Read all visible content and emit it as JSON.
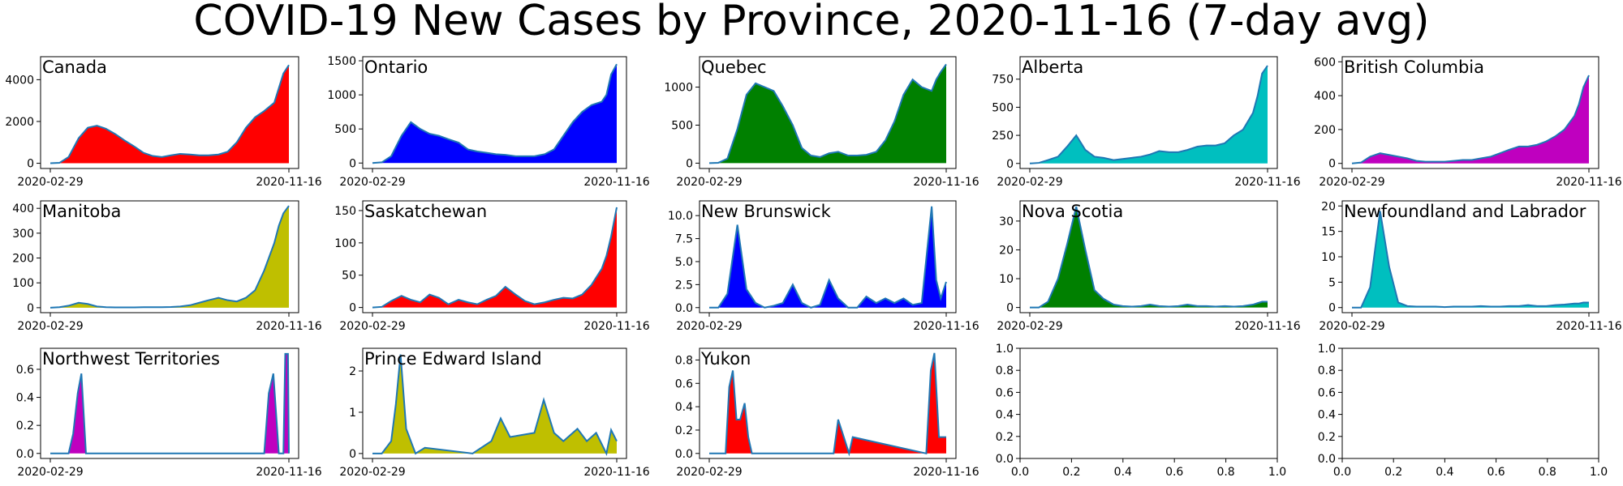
{
  "figure": {
    "title": "COVID-19 New Cases by Province, 2020-11-16 (7-day avg)"
  },
  "chart_data": [
    {
      "type": "area",
      "title": "Canada",
      "color": "#ff0000",
      "x": [
        "2020-02-29",
        "2020-03-10",
        "2020-03-20",
        "2020-03-31",
        "2020-04-10",
        "2020-04-20",
        "2020-04-30",
        "2020-05-10",
        "2020-05-20",
        "2020-05-31",
        "2020-06-10",
        "2020-06-20",
        "2020-06-30",
        "2020-07-10",
        "2020-07-20",
        "2020-07-31",
        "2020-08-10",
        "2020-08-20",
        "2020-08-31",
        "2020-09-10",
        "2020-09-20",
        "2020-09-30",
        "2020-10-10",
        "2020-10-20",
        "2020-10-31",
        "2020-11-05",
        "2020-11-10",
        "2020-11-16"
      ],
      "values": [
        0,
        20,
        300,
        1200,
        1700,
        1800,
        1650,
        1400,
        1100,
        800,
        500,
        350,
        300,
        380,
        450,
        420,
        380,
        380,
        420,
        550,
        1000,
        1700,
        2200,
        2500,
        2900,
        3600,
        4300,
        4700
      ],
      "yticks": [
        0,
        2000,
        4000
      ],
      "ylim": [
        -250,
        5100
      ],
      "xtick_labels": [
        "2020-02-29",
        "2020-11-16"
      ]
    },
    {
      "type": "area",
      "title": "Ontario",
      "color": "#0000ff",
      "x": [
        "2020-02-29",
        "2020-03-10",
        "2020-03-20",
        "2020-03-31",
        "2020-04-10",
        "2020-04-20",
        "2020-04-30",
        "2020-05-10",
        "2020-05-20",
        "2020-05-31",
        "2020-06-10",
        "2020-06-20",
        "2020-06-30",
        "2020-07-10",
        "2020-07-20",
        "2020-07-31",
        "2020-08-10",
        "2020-08-20",
        "2020-08-31",
        "2020-09-10",
        "2020-09-20",
        "2020-09-30",
        "2020-10-10",
        "2020-10-20",
        "2020-10-31",
        "2020-11-05",
        "2020-11-10",
        "2020-11-16"
      ],
      "values": [
        0,
        10,
        100,
        400,
        600,
        500,
        430,
        400,
        350,
        300,
        200,
        170,
        150,
        130,
        120,
        100,
        100,
        100,
        130,
        200,
        400,
        600,
        750,
        850,
        900,
        1000,
        1300,
        1450
      ],
      "yticks": [
        0,
        500,
        1000,
        1500
      ],
      "ylim": [
        -80,
        1560
      ],
      "xtick_labels": [
        "2020-02-29",
        "2020-11-16"
      ]
    },
    {
      "type": "area",
      "title": "Quebec",
      "color": "#008000",
      "x": [
        "2020-02-29",
        "2020-03-10",
        "2020-03-20",
        "2020-03-31",
        "2020-04-10",
        "2020-04-20",
        "2020-04-30",
        "2020-05-10",
        "2020-05-20",
        "2020-05-31",
        "2020-06-10",
        "2020-06-20",
        "2020-06-30",
        "2020-07-10",
        "2020-07-20",
        "2020-07-31",
        "2020-08-10",
        "2020-08-20",
        "2020-08-31",
        "2020-09-10",
        "2020-09-20",
        "2020-09-30",
        "2020-10-10",
        "2020-10-20",
        "2020-10-31",
        "2020-11-05",
        "2020-11-10",
        "2020-11-16"
      ],
      "values": [
        0,
        5,
        60,
        450,
        900,
        1050,
        1000,
        950,
        750,
        500,
        200,
        100,
        80,
        130,
        150,
        100,
        100,
        110,
        150,
        300,
        550,
        900,
        1100,
        1000,
        950,
        1100,
        1200,
        1300
      ],
      "yticks": [
        0,
        500,
        1000
      ],
      "ylim": [
        -70,
        1400
      ],
      "xtick_labels": [
        "2020-02-29",
        "2020-11-16"
      ]
    },
    {
      "type": "area",
      "title": "Alberta",
      "color": "#00bfbf",
      "x": [
        "2020-02-29",
        "2020-03-10",
        "2020-03-20",
        "2020-03-31",
        "2020-04-10",
        "2020-04-20",
        "2020-04-30",
        "2020-05-10",
        "2020-05-20",
        "2020-05-31",
        "2020-06-10",
        "2020-06-20",
        "2020-06-30",
        "2020-07-10",
        "2020-07-20",
        "2020-07-31",
        "2020-08-10",
        "2020-08-20",
        "2020-08-31",
        "2020-09-10",
        "2020-09-20",
        "2020-09-30",
        "2020-10-10",
        "2020-10-20",
        "2020-10-31",
        "2020-11-05",
        "2020-11-10",
        "2020-11-16"
      ],
      "values": [
        0,
        5,
        30,
        60,
        150,
        250,
        120,
        60,
        50,
        30,
        40,
        50,
        60,
        80,
        110,
        100,
        100,
        120,
        150,
        160,
        160,
        180,
        250,
        300,
        450,
        600,
        800,
        870
      ],
      "yticks": [
        0,
        250,
        500,
        750
      ],
      "ylim": [
        -45,
        950
      ],
      "xtick_labels": [
        "2020-02-29",
        "2020-11-16"
      ]
    },
    {
      "type": "area",
      "title": "British Columbia",
      "color": "#bf00bf",
      "x": [
        "2020-02-29",
        "2020-03-10",
        "2020-03-20",
        "2020-03-31",
        "2020-04-10",
        "2020-04-20",
        "2020-04-30",
        "2020-05-10",
        "2020-05-20",
        "2020-05-31",
        "2020-06-10",
        "2020-06-20",
        "2020-06-30",
        "2020-07-10",
        "2020-07-20",
        "2020-07-31",
        "2020-08-10",
        "2020-08-20",
        "2020-08-31",
        "2020-09-10",
        "2020-09-20",
        "2020-09-30",
        "2020-10-10",
        "2020-10-20",
        "2020-10-31",
        "2020-11-05",
        "2020-11-10",
        "2020-11-16"
      ],
      "values": [
        0,
        5,
        40,
        60,
        50,
        40,
        30,
        15,
        10,
        10,
        10,
        15,
        20,
        20,
        30,
        40,
        60,
        80,
        100,
        100,
        110,
        130,
        160,
        200,
        280,
        350,
        450,
        520
      ],
      "yticks": [
        0,
        200,
        400,
        600
      ],
      "ylim": [
        -30,
        630
      ],
      "xtick_labels": [
        "2020-02-29",
        "2020-11-16"
      ]
    },
    {
      "type": "area",
      "title": "Manitoba",
      "color": "#bfbf00",
      "x": [
        "2020-02-29",
        "2020-03-10",
        "2020-03-20",
        "2020-03-31",
        "2020-04-10",
        "2020-04-20",
        "2020-04-30",
        "2020-05-10",
        "2020-05-20",
        "2020-05-31",
        "2020-06-10",
        "2020-06-20",
        "2020-06-30",
        "2020-07-10",
        "2020-07-20",
        "2020-07-31",
        "2020-08-10",
        "2020-08-20",
        "2020-08-31",
        "2020-09-10",
        "2020-09-20",
        "2020-09-30",
        "2020-10-10",
        "2020-10-20",
        "2020-10-31",
        "2020-11-05",
        "2020-11-10",
        "2020-11-16"
      ],
      "values": [
        0,
        2,
        8,
        20,
        15,
        5,
        2,
        1,
        1,
        1,
        2,
        2,
        2,
        3,
        5,
        10,
        20,
        30,
        40,
        30,
        25,
        40,
        70,
        150,
        260,
        330,
        380,
        410
      ],
      "yticks": [
        0,
        100,
        200,
        300,
        400
      ],
      "ylim": [
        -20,
        430
      ],
      "xtick_labels": [
        "2020-02-29",
        "2020-11-16"
      ]
    },
    {
      "type": "area",
      "title": "Saskatchewan",
      "color": "#ff0000",
      "x": [
        "2020-02-29",
        "2020-03-10",
        "2020-03-20",
        "2020-03-31",
        "2020-04-10",
        "2020-04-20",
        "2020-04-30",
        "2020-05-10",
        "2020-05-20",
        "2020-05-31",
        "2020-06-10",
        "2020-06-20",
        "2020-06-30",
        "2020-07-10",
        "2020-07-20",
        "2020-07-31",
        "2020-08-10",
        "2020-08-20",
        "2020-08-31",
        "2020-09-10",
        "2020-09-20",
        "2020-09-30",
        "2020-10-10",
        "2020-10-20",
        "2020-10-31",
        "2020-11-05",
        "2020-11-10",
        "2020-11-16"
      ],
      "values": [
        0,
        1,
        10,
        18,
        12,
        8,
        20,
        15,
        5,
        12,
        8,
        5,
        12,
        18,
        32,
        20,
        10,
        5,
        8,
        12,
        15,
        14,
        20,
        35,
        60,
        80,
        110,
        155
      ],
      "yticks": [
        0,
        50,
        100,
        150
      ],
      "ylim": [
        -8,
        165
      ],
      "xtick_labels": [
        "2020-02-29",
        "2020-11-16"
      ]
    },
    {
      "type": "area",
      "title": "New Brunswick",
      "color": "#0000ff",
      "x": [
        "2020-02-29",
        "2020-03-10",
        "2020-03-20",
        "2020-03-31",
        "2020-04-10",
        "2020-04-20",
        "2020-04-30",
        "2020-05-10",
        "2020-05-20",
        "2020-05-31",
        "2020-06-10",
        "2020-06-20",
        "2020-06-30",
        "2020-07-10",
        "2020-07-20",
        "2020-07-31",
        "2020-08-10",
        "2020-08-20",
        "2020-08-31",
        "2020-09-10",
        "2020-09-20",
        "2020-09-30",
        "2020-10-10",
        "2020-10-20",
        "2020-10-31",
        "2020-11-05",
        "2020-11-10",
        "2020-11-16"
      ],
      "values": [
        0,
        0,
        1.5,
        9,
        2,
        0.5,
        0,
        0.2,
        0.5,
        2.5,
        0.5,
        0,
        0.3,
        3,
        1,
        0,
        0,
        1.2,
        0.5,
        1,
        0.5,
        1,
        0.3,
        0.5,
        11,
        3,
        1,
        2.8
      ],
      "yticks": [
        0,
        2.5,
        5,
        7.5,
        10
      ],
      "ylim": [
        -0.55,
        11.6
      ],
      "ytick_labels": [
        "0.0",
        "2.5",
        "5.0",
        "7.5",
        "10.0"
      ],
      "xtick_labels": [
        "2020-02-29",
        "2020-11-16"
      ]
    },
    {
      "type": "area",
      "title": "Nova Scotia",
      "color": "#008000",
      "x": [
        "2020-02-29",
        "2020-03-10",
        "2020-03-20",
        "2020-03-31",
        "2020-04-10",
        "2020-04-20",
        "2020-04-30",
        "2020-05-10",
        "2020-05-20",
        "2020-05-31",
        "2020-06-10",
        "2020-06-20",
        "2020-06-30",
        "2020-07-10",
        "2020-07-20",
        "2020-07-31",
        "2020-08-10",
        "2020-08-20",
        "2020-08-31",
        "2020-09-10",
        "2020-09-20",
        "2020-09-30",
        "2020-10-10",
        "2020-10-20",
        "2020-10-31",
        "2020-11-05",
        "2020-11-10",
        "2020-11-16"
      ],
      "values": [
        0,
        0,
        2,
        10,
        22,
        35,
        20,
        6,
        3,
        1,
        0.5,
        0.3,
        0.5,
        1,
        0.5,
        0.3,
        0.5,
        1,
        0.5,
        0.5,
        0.3,
        0.5,
        0.3,
        0.5,
        1,
        1.5,
        2,
        2
      ],
      "yticks": [
        0,
        10,
        20,
        30
      ],
      "ylim": [
        -1.8,
        37
      ],
      "xtick_labels": [
        "2020-02-29",
        "2020-11-16"
      ]
    },
    {
      "type": "area",
      "title": "Newfoundland and Labrador",
      "color": "#00bfbf",
      "x": [
        "2020-02-29",
        "2020-03-10",
        "2020-03-20",
        "2020-03-31",
        "2020-04-10",
        "2020-04-20",
        "2020-04-30",
        "2020-05-10",
        "2020-05-20",
        "2020-05-31",
        "2020-06-10",
        "2020-06-20",
        "2020-06-30",
        "2020-07-10",
        "2020-07-20",
        "2020-07-31",
        "2020-08-10",
        "2020-08-20",
        "2020-08-31",
        "2020-09-10",
        "2020-09-20",
        "2020-09-30",
        "2020-10-10",
        "2020-10-20",
        "2020-10-31",
        "2020-11-05",
        "2020-11-10",
        "2020-11-16"
      ],
      "values": [
        0,
        0,
        4,
        19,
        8,
        1,
        0.3,
        0.2,
        0.2,
        0.2,
        0.1,
        0.2,
        0.2,
        0.2,
        0.3,
        0.2,
        0.2,
        0.3,
        0.3,
        0.5,
        0.3,
        0.3,
        0.5,
        0.6,
        0.8,
        0.8,
        1,
        1
      ],
      "yticks": [
        0,
        5,
        10,
        15,
        20
      ],
      "ylim": [
        -1,
        21
      ],
      "xtick_labels": [
        "2020-02-29",
        "2020-11-16"
      ]
    },
    {
      "type": "area",
      "title": "Northwest Territories",
      "color": "#bf00bf",
      "x": [
        "2020-02-29",
        "2020-03-20",
        "2020-03-25",
        "2020-03-30",
        "2020-04-03",
        "2020-04-08",
        "2020-10-20",
        "2020-10-25",
        "2020-10-30",
        "2020-11-05",
        "2020-11-10",
        "2020-11-12",
        "2020-11-15",
        "2020-11-16"
      ],
      "values": [
        0,
        0,
        0.14,
        0.43,
        0.57,
        0,
        0,
        0.43,
        0.57,
        0,
        0,
        0.71,
        0.71,
        0
      ],
      "yticks": [
        0,
        0.2,
        0.4,
        0.6
      ],
      "ylim": [
        -0.036,
        0.75
      ],
      "ytick_labels": [
        "0.0",
        "0.2",
        "0.4",
        "0.6"
      ],
      "xtick_labels": [
        "2020-02-29",
        "2020-11-16"
      ]
    },
    {
      "type": "area",
      "title": "Prince Edward Island",
      "color": "#bfbf00",
      "x": [
        "2020-02-29",
        "2020-03-10",
        "2020-03-20",
        "2020-03-25",
        "2020-03-30",
        "2020-04-05",
        "2020-04-15",
        "2020-04-25",
        "2020-06-15",
        "2020-07-05",
        "2020-07-15",
        "2020-07-25",
        "2020-08-20",
        "2020-08-30",
        "2020-09-10",
        "2020-09-20",
        "2020-10-05",
        "2020-10-15",
        "2020-10-25",
        "2020-11-05",
        "2020-11-10",
        "2020-11-16"
      ],
      "values": [
        0,
        0,
        0.3,
        1.2,
        2.4,
        0.6,
        0,
        0.14,
        0,
        0.3,
        0.85,
        0.4,
        0.5,
        1.3,
        0.5,
        0.3,
        0.6,
        0.3,
        0.5,
        0,
        0.57,
        0.3
      ],
      "yticks": [
        0,
        1,
        2
      ],
      "ylim": [
        -0.12,
        2.55
      ],
      "xtick_labels": [
        "2020-02-29",
        "2020-11-16"
      ]
    },
    {
      "type": "area",
      "title": "Yukon",
      "color": "#ff0000",
      "x": [
        "2020-02-29",
        "2020-03-18",
        "2020-03-22",
        "2020-03-26",
        "2020-03-30",
        "2020-04-03",
        "2020-04-08",
        "2020-04-12",
        "2020-04-16",
        "2020-07-15",
        "2020-07-20",
        "2020-08-01",
        "2020-08-05",
        "2020-10-25",
        "2020-10-30",
        "2020-11-03",
        "2020-11-08",
        "2020-11-16"
      ],
      "values": [
        0,
        0,
        0.57,
        0.71,
        0.29,
        0.29,
        0.43,
        0.14,
        0,
        0,
        0.29,
        0,
        0.14,
        0,
        0.71,
        0.86,
        0.14,
        0.14
      ],
      "yticks": [
        0,
        0.2,
        0.4,
        0.6,
        0.8
      ],
      "ylim": [
        -0.043,
        0.9
      ],
      "ytick_labels": [
        "0.0",
        "0.2",
        "0.4",
        "0.6",
        "0.8"
      ],
      "xtick_labels": [
        "2020-02-29",
        "2020-11-16"
      ]
    },
    {
      "type": "empty",
      "title": "",
      "xticks": [
        0,
        0.2,
        0.4,
        0.6,
        0.8,
        1.0
      ],
      "yticks": [
        0,
        0.2,
        0.4,
        0.6,
        0.8,
        1.0
      ],
      "xtick_labels": [
        "0.0",
        "0.2",
        "0.4",
        "0.6",
        "0.8",
        "1.0"
      ],
      "ytick_labels": [
        "0.0",
        "0.2",
        "0.4",
        "0.6",
        "0.8",
        "1.0"
      ],
      "xlim": [
        0,
        1
      ],
      "ylim": [
        0,
        1
      ]
    },
    {
      "type": "empty",
      "title": "",
      "xticks": [
        0,
        0.2,
        0.4,
        0.6,
        0.8,
        1.0
      ],
      "yticks": [
        0,
        0.2,
        0.4,
        0.6,
        0.8,
        1.0
      ],
      "xtick_labels": [
        "0.0",
        "0.2",
        "0.4",
        "0.6",
        "0.8",
        "1.0"
      ],
      "ytick_labels": [
        "0.0",
        "0.2",
        "0.4",
        "0.6",
        "0.8",
        "1.0"
      ],
      "xlim": [
        0,
        1
      ],
      "ylim": [
        0,
        1
      ]
    }
  ]
}
